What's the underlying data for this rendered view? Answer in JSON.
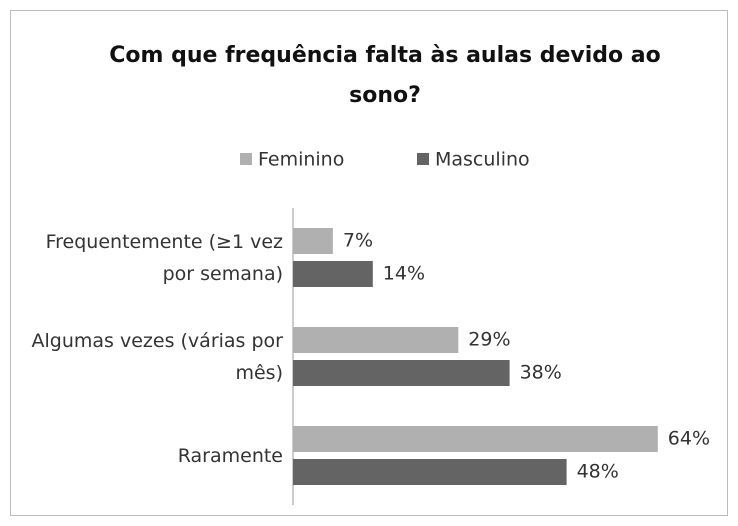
{
  "chart_data": {
    "type": "hbar",
    "title": "Com que frequência falta às aulas devido ao sono?",
    "categories": [
      "Frequentemente (≥1 vez por semana)",
      "Algumas vezes (várias por mês)",
      "Raramente"
    ],
    "series": [
      {
        "name": "Feminino",
        "color": "#b0b0b0",
        "values": [
          7,
          29,
          64
        ],
        "value_labels": [
          "7%",
          "29%",
          "64%"
        ]
      },
      {
        "name": "Masculino",
        "color": "#646464",
        "values": [
          14,
          38,
          48
        ],
        "value_labels": [
          "14%",
          "38%",
          "48%"
        ]
      }
    ],
    "xlim": [
      0,
      70
    ],
    "legend": "top"
  }
}
